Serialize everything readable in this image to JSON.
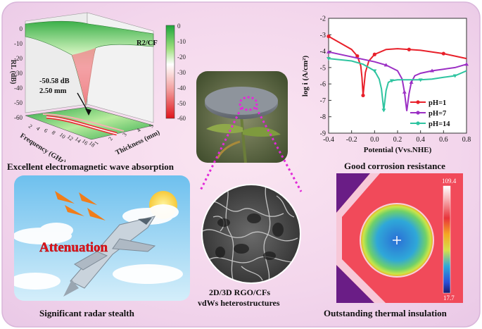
{
  "panels": {
    "em_absorption": {
      "caption": "Excellent electromagnetic wave absorption",
      "material_label": "R2/CF",
      "annotation_value": "-50.58 dB",
      "annotation_thickness": "2.50 mm",
      "z_axis_label": "RL (dB)",
      "x_axis_label": "Frequency (GHz)",
      "y_axis_label": "Thickness (mm)",
      "z_ticks": [
        "0",
        "-10",
        "-20",
        "-30",
        "-40",
        "-50",
        "-60"
      ],
      "colorbar_ticks": [
        "0",
        "-10",
        "-20",
        "-30",
        "-40",
        "-50",
        "-60"
      ],
      "freq_ticks": [
        "2",
        "4",
        "6",
        "8",
        "10",
        "12",
        "14",
        "16",
        "18"
      ],
      "thickness_ticks": [
        "1",
        "2",
        "3",
        "4",
        "5"
      ]
    },
    "corrosion": {
      "caption": "Good corrosion resistance",
      "chart_data": {
        "type": "line",
        "xlabel": "Potential (Vvs.NHE)",
        "ylabel": "log i (A/cm²)",
        "xlim": [
          -0.4,
          0.8
        ],
        "ylim": [
          -9,
          -2
        ],
        "x_ticks": [
          "-0.4",
          "-0.2",
          "0.0",
          "0.2",
          "0.4",
          "0.6",
          "0.8"
        ],
        "y_ticks": [
          "-2",
          "-3",
          "-4",
          "-5",
          "-6",
          "-7",
          "-8",
          "-9"
        ],
        "legend_position": "bottom-right",
        "series": [
          {
            "name": "pH=1",
            "color": "#e8202a",
            "x": [
              -0.4,
              -0.3,
              -0.2,
              -0.15,
              -0.12,
              -0.11,
              -0.1,
              -0.08,
              -0.05,
              0.0,
              0.1,
              0.2,
              0.3,
              0.4,
              0.5,
              0.6,
              0.7,
              0.8
            ],
            "y": [
              -3.1,
              -3.5,
              -3.9,
              -4.3,
              -4.9,
              -5.6,
              -6.7,
              -5.3,
              -4.6,
              -4.2,
              -3.9,
              -3.85,
              -3.9,
              -3.95,
              -4.05,
              -4.15,
              -4.3,
              -4.45
            ]
          },
          {
            "name": "pH=7",
            "color": "#9b2fc4",
            "x": [
              -0.4,
              -0.2,
              0.0,
              0.1,
              0.2,
              0.24,
              0.26,
              0.28,
              0.3,
              0.32,
              0.35,
              0.4,
              0.5,
              0.6,
              0.7,
              0.8
            ],
            "y": [
              -4.05,
              -4.35,
              -4.65,
              -4.85,
              -5.2,
              -5.7,
              -6.5,
              -7.65,
              -6.6,
              -5.9,
              -5.5,
              -5.35,
              -5.2,
              -5.1,
              -5.0,
              -4.8
            ]
          },
          {
            "name": "pH=14",
            "color": "#2ec4a0",
            "x": [
              -0.4,
              -0.2,
              -0.1,
              0.0,
              0.04,
              0.06,
              0.08,
              0.1,
              0.12,
              0.15,
              0.2,
              0.3,
              0.4,
              0.5,
              0.6,
              0.7,
              0.8
            ],
            "y": [
              -4.45,
              -4.6,
              -4.8,
              -5.2,
              -5.7,
              -6.3,
              -7.6,
              -6.4,
              -5.9,
              -5.8,
              -5.75,
              -5.75,
              -5.75,
              -5.7,
              -5.6,
              -5.5,
              -5.2
            ]
          }
        ]
      }
    },
    "radar": {
      "caption": "Significant radar stealth",
      "overlay_text": "Attenuation"
    },
    "structure": {
      "caption_line1": "2D/3D RGO/CFs",
      "caption_line2": "vdWs heterostructures"
    },
    "thermal": {
      "caption": "Outstanding thermal insulation",
      "scale_max": "109.4",
      "scale_min": "17.7"
    }
  }
}
